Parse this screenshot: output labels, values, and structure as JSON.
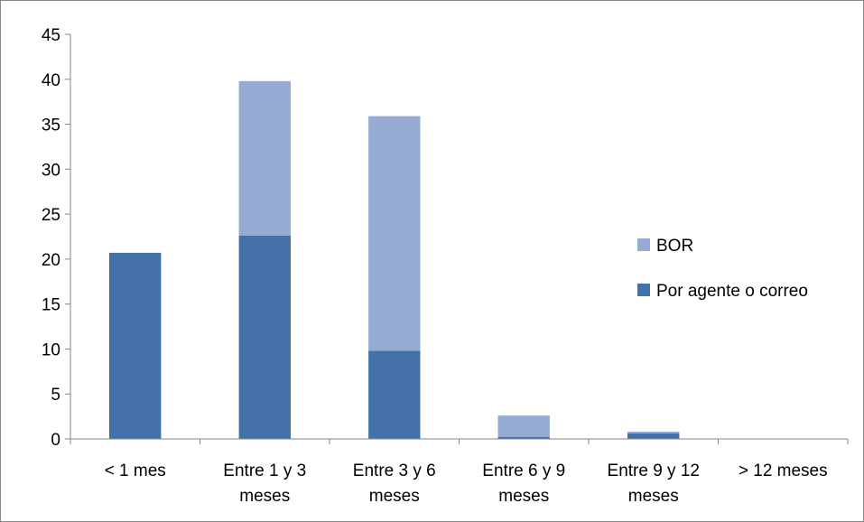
{
  "chart_data": {
    "type": "bar",
    "stacked": true,
    "categories": [
      [
        "< 1 mes"
      ],
      [
        "Entre 1 y 3",
        "meses"
      ],
      [
        "Entre 3 y 6",
        "meses"
      ],
      [
        "Entre 6 y 9",
        "meses"
      ],
      [
        "Entre 9 y 12",
        "meses"
      ],
      [
        "> 12 meses"
      ]
    ],
    "series": [
      {
        "name": "Por agente o correo",
        "color": "#4472a8",
        "values": [
          20.7,
          22.6,
          9.8,
          0.2,
          0.6,
          0
        ]
      },
      {
        "name": "BOR",
        "color": "#95abd3",
        "values": [
          0,
          17.2,
          26.1,
          2.4,
          0.2,
          0
        ]
      }
    ],
    "ylim": [
      0,
      45
    ],
    "yticks": [
      0,
      5,
      10,
      15,
      20,
      25,
      30,
      35,
      40,
      45
    ],
    "title": "",
    "xlabel": "",
    "ylabel": "",
    "grid": false,
    "legend": {
      "position": "right",
      "order": [
        "BOR",
        "Por agente o correo"
      ]
    }
  }
}
